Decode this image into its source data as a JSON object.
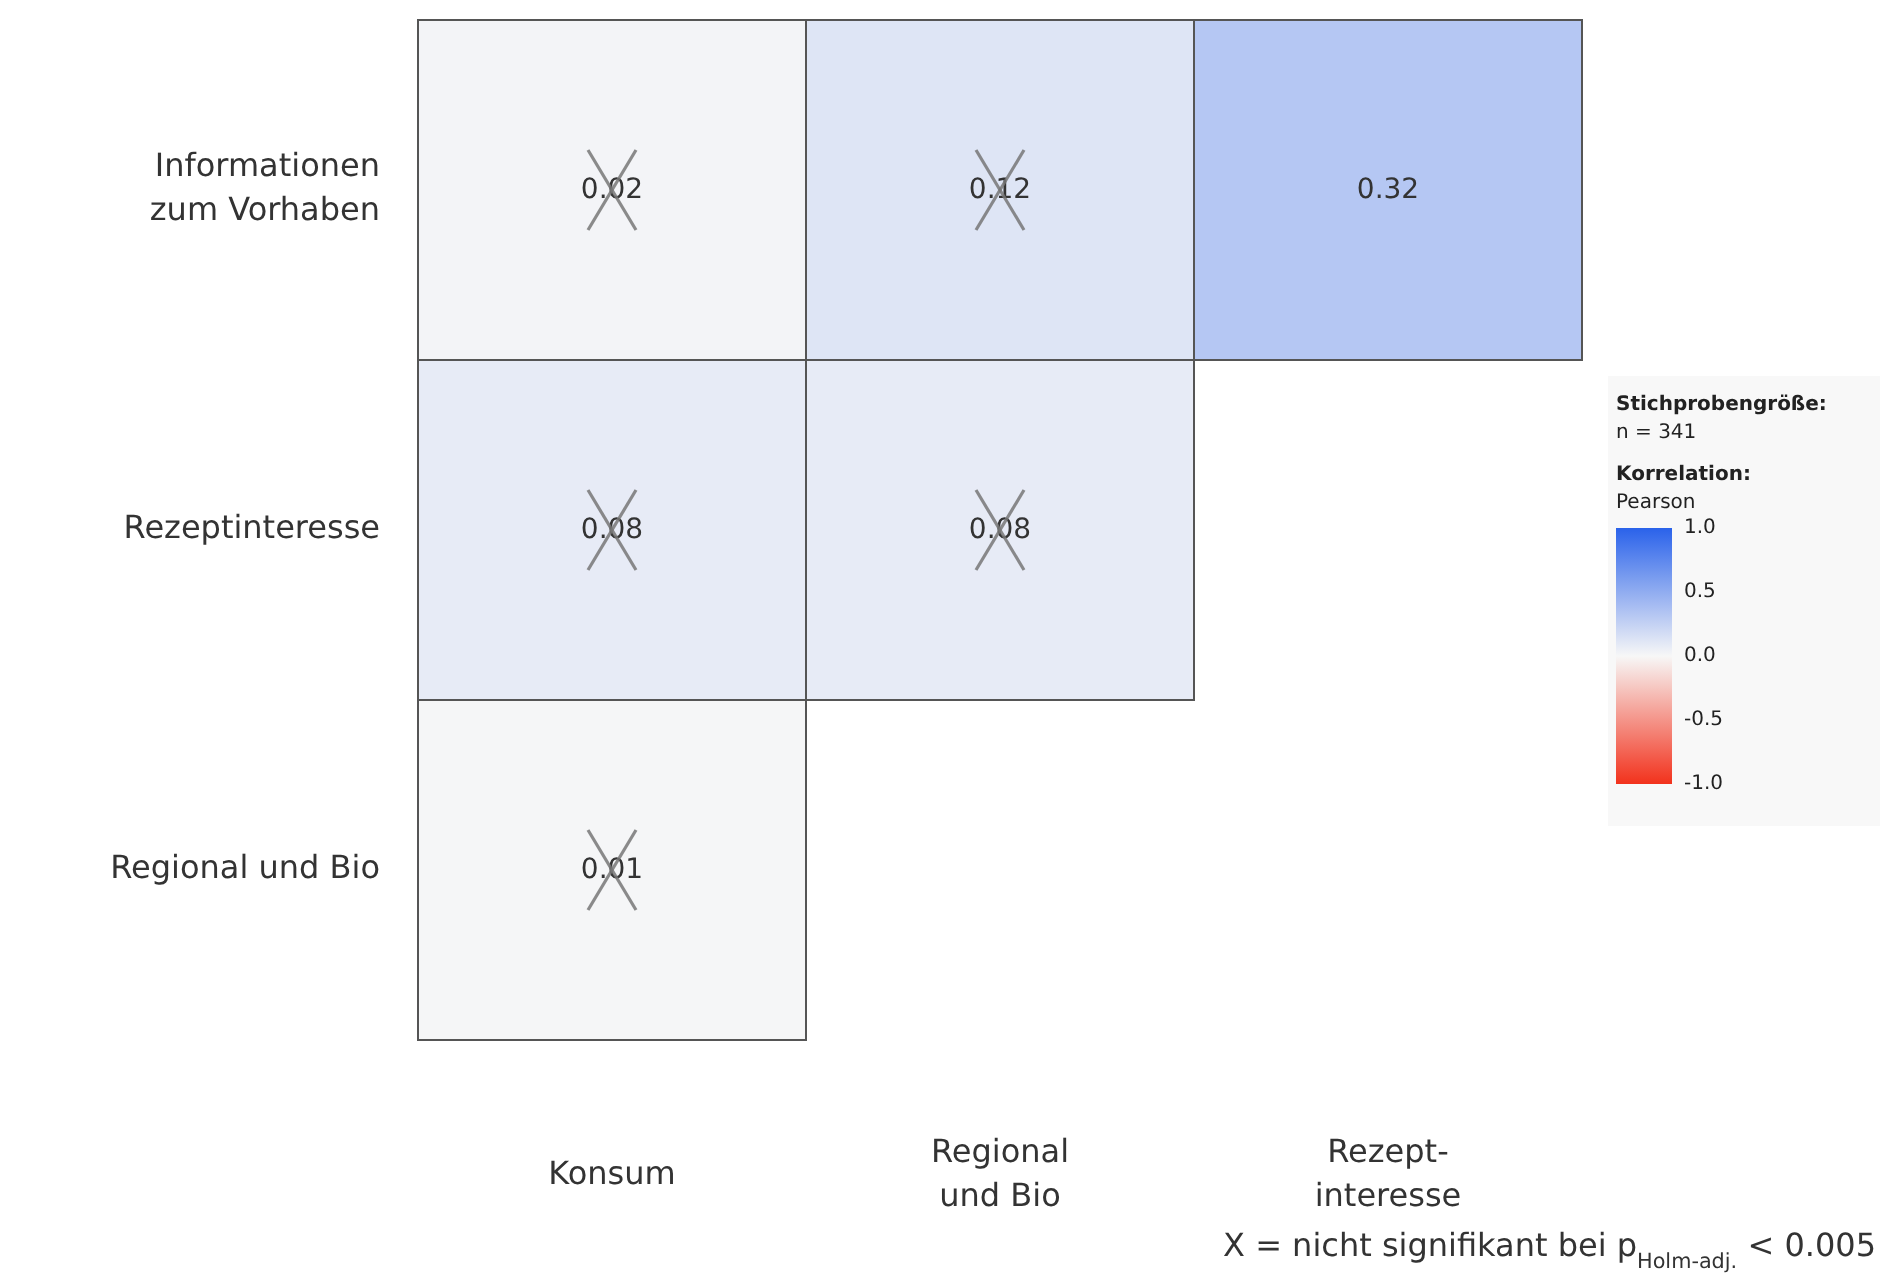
{
  "chart_data": {
    "type": "heatmap",
    "categories": [
      "Konsum",
      "Regional\nund Bio",
      "Rezept-\ninteresse"
    ],
    "y_categories": [
      "Informationen\nzum Vorhaben",
      "Rezeptinteresse",
      "Regional und Bio"
    ],
    "cells": [
      [
        0.02,
        0.12,
        0.32
      ],
      [
        0.08,
        0.08,
        null
      ],
      [
        0.01,
        null,
        null
      ]
    ],
    "clim": [
      -1,
      1
    ],
    "cticks": [
      {
        "value": 1,
        "label": "1.0"
      },
      {
        "value": 0.5,
        "label": "0.5"
      },
      {
        "value": 0,
        "label": "0.0"
      },
      {
        "value": -0.5,
        "label": "-0.5"
      },
      {
        "value": -1,
        "label": "-1.0"
      }
    ],
    "legend_title": "Korrelation:",
    "clabel": "Pearson",
    "data_labels": true,
    "annotations": [
      "Stichprobengröße:",
      "n = 341",
      "X = nicht signifikant bei p$_{Holm-adj.}$ < 0.005"
    ]
  }
}
